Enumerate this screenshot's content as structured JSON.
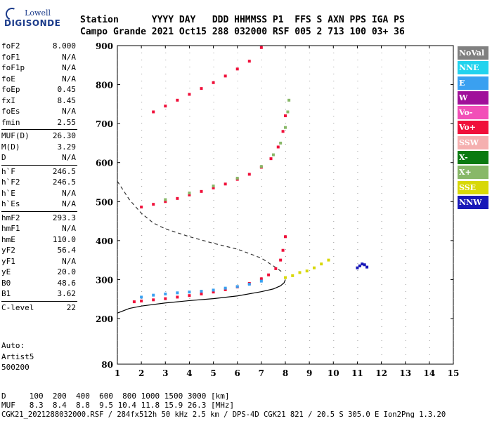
{
  "logo": {
    "line1": "Lowell",
    "line2": "DIGISONDE"
  },
  "header": {
    "line1": "Station      YYYY DAY   DDD HHMMSS P1  FFS S AXN PPS IGA PS",
    "line2": "Campo Grande 2021 Oct15 288 032000 RSF 005 2 713 100 03+ 36"
  },
  "params": {
    "group1": [
      {
        "label": "foF2",
        "value": "8.000"
      },
      {
        "label": "foF1",
        "value": "N/A"
      },
      {
        "label": "foF1p",
        "value": "N/A"
      },
      {
        "label": "foE",
        "value": "N/A"
      },
      {
        "label": "foEp",
        "value": "0.45"
      },
      {
        "label": "fxI",
        "value": "8.45"
      },
      {
        "label": "foEs",
        "value": "N/A"
      },
      {
        "label": "fmin",
        "value": "2.55"
      }
    ],
    "group2": [
      {
        "label": "MUF(D)",
        "value": "26.30"
      },
      {
        "label": "M(D)",
        "value": "3.29"
      },
      {
        "label": "D",
        "value": "N/A"
      }
    ],
    "group3": [
      {
        "label": "h`F",
        "value": "246.5"
      },
      {
        "label": "h`F2",
        "value": "246.5"
      },
      {
        "label": "h`E",
        "value": "N/A"
      },
      {
        "label": "h`Es",
        "value": "N/A"
      }
    ],
    "group4": [
      {
        "label": "hmF2",
        "value": "293.3"
      },
      {
        "label": "hmF1",
        "value": "N/A"
      },
      {
        "label": "hmE",
        "value": "110.0"
      },
      {
        "label": "yF2",
        "value": "56.4"
      },
      {
        "label": "yF1",
        "value": "N/A"
      },
      {
        "label": "yE",
        "value": "20.0"
      },
      {
        "label": "B0",
        "value": "48.6"
      },
      {
        "label": "B1",
        "value": "3.62"
      }
    ],
    "group5": [
      {
        "label": "C-level",
        "value": "22"
      }
    ]
  },
  "auto": {
    "line1": "Auto:",
    "line2": "Artist5",
    "line3": "500200"
  },
  "legend": [
    {
      "label": "NoVal",
      "color": "#808080"
    },
    {
      "label": "NNE",
      "color": "#22d3ee"
    },
    {
      "label": "E",
      "color": "#3aa0f0"
    },
    {
      "label": "W",
      "color": "#a0109a"
    },
    {
      "label": "Vo-",
      "color": "#f24fb8"
    },
    {
      "label": "Vo+",
      "color": "#f0103a"
    },
    {
      "label": "SSW",
      "color": "#f5b0b0"
    },
    {
      "label": "X-",
      "color": "#0a7a10"
    },
    {
      "label": "X+",
      "color": "#88b868"
    },
    {
      "label": "SSE",
      "color": "#d8d808"
    },
    {
      "label": "NNW",
      "color": "#1818b8"
    }
  ],
  "bottom": {
    "line1": "D     100  200  400  600  800 1000 1500 3000 [km]",
    "line2": "MUF   8.3  8.4  8.8  9.5 10.4 11.8 15.9 26.3 [MHz]"
  },
  "footer": "CGK21_2021288032000.RSF / 284fx512h 50 kHz 2.5 km / DPS-4D CGK21 821 / 20.5 S 305.0 E Ion2Png 1.3.20",
  "chart_data": {
    "type": "scatter",
    "xlim": [
      1,
      15
    ],
    "ylim": [
      80,
      900
    ],
    "x_ticks": [
      1,
      2,
      3,
      4,
      5,
      6,
      7,
      8,
      9,
      10,
      11,
      12,
      13,
      14,
      15
    ],
    "y_ticks": [
      80,
      200,
      300,
      400,
      500,
      600,
      700,
      800,
      900
    ],
    "series": [
      {
        "name": "Vo+",
        "color": "#f0103a",
        "x": [
          1.7,
          2.0,
          2.5,
          3.0,
          3.5,
          4.0,
          4.5,
          5.0,
          5.5,
          6.0,
          6.5,
          7.0,
          7.3,
          7.6,
          7.8,
          7.9,
          8.0
        ],
        "y": [
          243,
          245,
          248,
          251,
          255,
          259,
          263,
          268,
          274,
          281,
          290,
          302,
          312,
          328,
          350,
          375,
          410
        ]
      },
      {
        "name": "Vo+ 2F",
        "color": "#f0103a",
        "x": [
          2.0,
          2.5,
          3.0,
          3.5,
          4.0,
          4.5,
          5.0,
          5.5,
          6.0,
          6.5,
          7.0,
          7.4,
          7.7,
          7.9,
          8.0
        ],
        "y": [
          486,
          493,
          500,
          508,
          517,
          526,
          535,
          545,
          557,
          570,
          588,
          610,
          640,
          680,
          720
        ]
      },
      {
        "name": "Vo+ 3F",
        "color": "#f0103a",
        "x": [
          2.5,
          3.0,
          3.5,
          4.0,
          4.5,
          5.0,
          5.5,
          6.0,
          6.5,
          7.0
        ],
        "y": [
          730,
          745,
          760,
          775,
          790,
          805,
          822,
          840,
          860,
          895
        ]
      },
      {
        "name": "E",
        "color": "#3aa0f0",
        "x": [
          2.0,
          2.5,
          3.0,
          3.5,
          4.0,
          4.5,
          5.0,
          5.5,
          6.0,
          6.5,
          7.0
        ],
        "y": [
          255,
          260,
          263,
          266,
          268,
          270,
          273,
          278,
          282,
          288,
          296
        ]
      },
      {
        "name": "X+",
        "color": "#88b868",
        "x": [
          3.0,
          4.0,
          5.0,
          6.0,
          7.0,
          7.5,
          7.8,
          8.0,
          8.1,
          8.15
        ],
        "y": [
          505,
          522,
          540,
          560,
          590,
          620,
          650,
          690,
          730,
          760
        ]
      },
      {
        "name": "SSE",
        "color": "#d8d808",
        "x": [
          8.0,
          8.3,
          8.6,
          8.9,
          9.2,
          9.5,
          9.8
        ],
        "y": [
          305,
          310,
          318,
          322,
          330,
          340,
          350
        ]
      },
      {
        "name": "NNW",
        "color": "#1818b8",
        "x": [
          11.0,
          11.1,
          11.2,
          11.3,
          11.4
        ],
        "y": [
          330,
          335,
          340,
          338,
          332
        ]
      }
    ],
    "profile": {
      "x": [
        1.0,
        1.5,
        2.0,
        3.0,
        4.0,
        5.0,
        6.0,
        7.0,
        7.5,
        7.8,
        7.95,
        8.0
      ],
      "y": [
        214,
        226,
        232,
        240,
        246,
        251,
        258,
        269,
        276,
        284,
        292,
        300
      ]
    },
    "dashed": {
      "x": [
        1.0,
        1.5,
        2.0,
        2.5,
        3.0,
        4.0,
        5.0,
        6.0,
        7.0,
        7.5,
        7.9
      ],
      "y": [
        552,
        505,
        470,
        445,
        430,
        410,
        393,
        378,
        355,
        335,
        318
      ]
    }
  }
}
